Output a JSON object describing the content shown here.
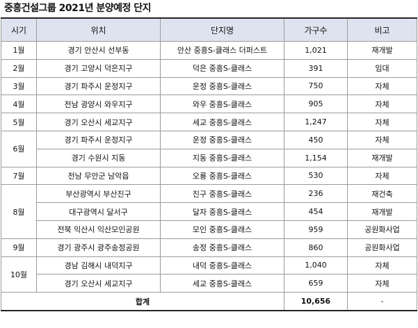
{
  "title": "중흥건설그룹 2021년 분양예정 단지",
  "headers": {
    "month": "시기",
    "location": "위치",
    "complex": "단지명",
    "units": "가구수",
    "note": "비고"
  },
  "groups": [
    {
      "month": "1월",
      "rows": [
        {
          "location": "경기 안산시 선부동",
          "complex": "안산 중흥S-클래스 더퍼스트",
          "units": "1,021",
          "note": "재개발"
        }
      ]
    },
    {
      "month": "2월",
      "rows": [
        {
          "location": "경기 고양시 덕은지구",
          "complex": "덕은 중흥S-클래스",
          "units": "391",
          "note": "임대"
        }
      ]
    },
    {
      "month": "3월",
      "rows": [
        {
          "location": "경기 파주시 운정지구",
          "complex": "운정 중흥S-클래스",
          "units": "750",
          "note": "자체"
        }
      ]
    },
    {
      "month": "4월",
      "rows": [
        {
          "location": "전남 광양시 와우지구",
          "complex": "와우 중흥S-클래스",
          "units": "905",
          "note": "자체"
        }
      ]
    },
    {
      "month": "5월",
      "rows": [
        {
          "location": "경기 오산시 세교지구",
          "complex": "세교 중흥S-클래스",
          "units": "1,247",
          "note": "자체"
        }
      ]
    },
    {
      "month": "6월",
      "rows": [
        {
          "location": "경기 파주시 운정지구",
          "complex": "운정 중흥S-클래스",
          "units": "450",
          "note": "자체"
        },
        {
          "location": "경기 수원시 지동",
          "complex": "지동 중흥S-클래스",
          "units": "1,154",
          "note": "재개발"
        }
      ]
    },
    {
      "month": "7월",
      "rows": [
        {
          "location": "전남 무안군 남악읍",
          "complex": "오룡 중흥S-클래스",
          "units": "530",
          "note": "자체"
        }
      ]
    },
    {
      "month": "8월",
      "rows": [
        {
          "location": "부산광역시 부산진구",
          "complex": "진구 중흥S-클래스",
          "units": "236",
          "note": "재건축"
        },
        {
          "location": "대구광역시 달서구",
          "complex": "달자 중흥S-클래스",
          "units": "454",
          "note": "재개발"
        },
        {
          "location": "전북 익산시 익산모인공원",
          "complex": "모인 중흥S-클래스",
          "units": "959",
          "note": "공원화사업"
        }
      ]
    },
    {
      "month": "9월",
      "rows": [
        {
          "location": "경기 광주시 광주송정공원",
          "complex": "송정 중흥S-클래스",
          "units": "860",
          "note": "공원화사업"
        }
      ]
    },
    {
      "month": "10월",
      "rows": [
        {
          "location": "경남 김해시 내덕지구",
          "complex": "내덕 중흥S-클래스",
          "units": "1,040",
          "note": "자체"
        },
        {
          "location": "경기 오산시 세교지구",
          "complex": "세교 중흥S-클래스",
          "units": "659",
          "note": "자체"
        }
      ]
    }
  ],
  "total": {
    "label": "합계",
    "units": "10,656",
    "note": "-"
  }
}
